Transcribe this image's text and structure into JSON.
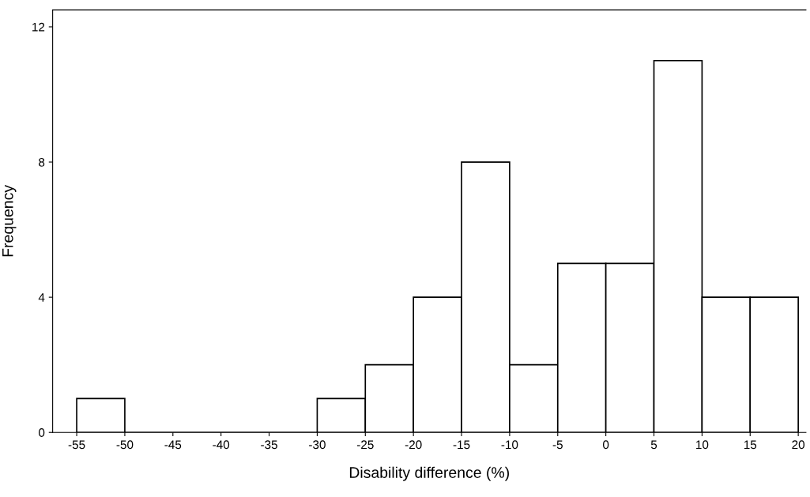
{
  "chart_data": {
    "type": "histogram",
    "xlabel": "Disability difference (%)",
    "ylabel": "Frequency",
    "bins": [
      -55,
      -50,
      -45,
      -40,
      -35,
      -30,
      -25,
      -20,
      -15,
      -10,
      -5,
      0,
      5,
      10,
      15,
      20
    ],
    "values": [
      1,
      0,
      0,
      0,
      0,
      1,
      2,
      4,
      8,
      2,
      5,
      5,
      11,
      4,
      4
    ],
    "color": "#ffffff",
    "xlim": [
      -57.5,
      20.8
    ],
    "ylim": [
      0,
      12.5
    ],
    "xticks": [
      -55,
      -50,
      -45,
      -40,
      -35,
      -30,
      -25,
      -20,
      -15,
      -10,
      -5,
      0,
      5,
      10,
      15,
      20
    ],
    "yticks": [
      0,
      4,
      8,
      12
    ],
    "grid": false,
    "legend": false
  }
}
